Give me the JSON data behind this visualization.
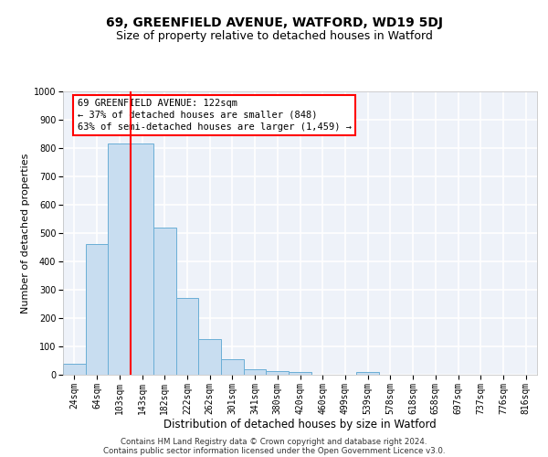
{
  "title": "69, GREENFIELD AVENUE, WATFORD, WD19 5DJ",
  "subtitle": "Size of property relative to detached houses in Watford",
  "xlabel": "Distribution of detached houses by size in Watford",
  "ylabel": "Number of detached properties",
  "footer_line1": "Contains HM Land Registry data © Crown copyright and database right 2024.",
  "footer_line2": "Contains public sector information licensed under the Open Government Licence v3.0.",
  "categories": [
    "24sqm",
    "64sqm",
    "103sqm",
    "143sqm",
    "182sqm",
    "222sqm",
    "262sqm",
    "301sqm",
    "341sqm",
    "380sqm",
    "420sqm",
    "460sqm",
    "499sqm",
    "539sqm",
    "578sqm",
    "618sqm",
    "658sqm",
    "697sqm",
    "737sqm",
    "776sqm",
    "816sqm"
  ],
  "values": [
    38,
    460,
    815,
    815,
    520,
    270,
    125,
    55,
    20,
    12,
    10,
    0,
    0,
    10,
    0,
    0,
    0,
    0,
    0,
    0,
    0
  ],
  "bar_color": "#c8ddf0",
  "bar_edge_color": "#6aaed6",
  "red_line_x": 2.5,
  "annotation_text": "69 GREENFIELD AVENUE: 122sqm\n← 37% of detached houses are smaller (848)\n63% of semi-detached houses are larger (1,459) →",
  "annotation_box_color": "white",
  "annotation_box_edge_color": "red",
  "red_line_color": "red",
  "ylim": [
    0,
    1000
  ],
  "yticks": [
    0,
    100,
    200,
    300,
    400,
    500,
    600,
    700,
    800,
    900,
    1000
  ],
  "bg_color": "#eef2f9",
  "grid_color": "white",
  "title_fontsize": 10,
  "subtitle_fontsize": 9,
  "axis_label_fontsize": 8.5,
  "tick_fontsize": 7,
  "annotation_fontsize": 7.5,
  "ylabel_fontsize": 8
}
